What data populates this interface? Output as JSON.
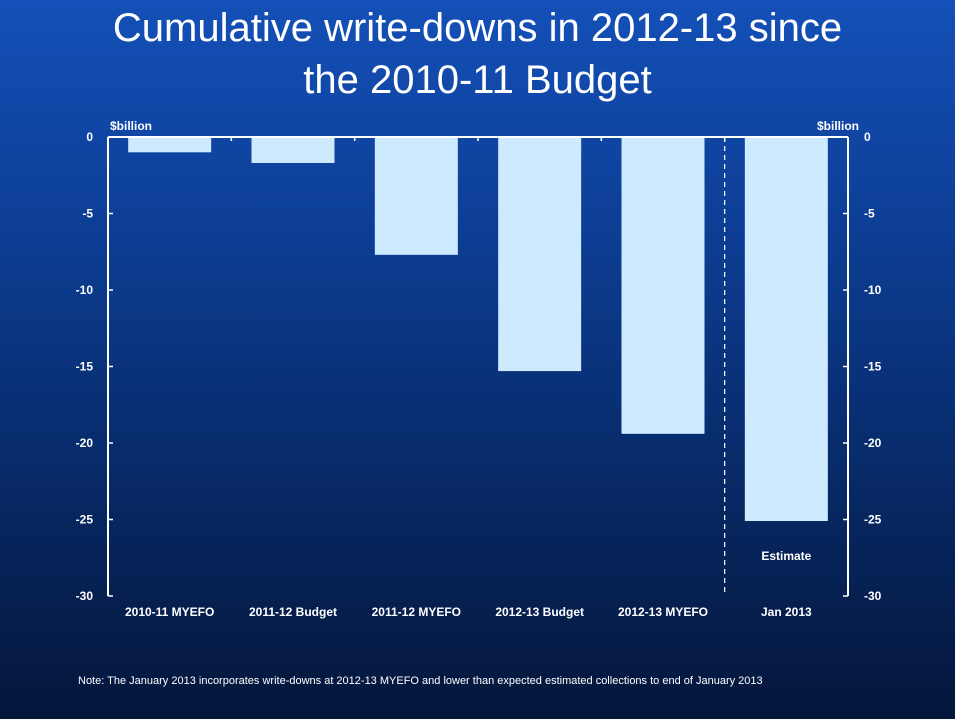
{
  "slide": {
    "title_line1": "Cumulative write-downs in 2012-13 since",
    "title_line2": "the 2010-11 Budget",
    "note": "Note: The January 2013 incorporates write-downs at 2012-13 MYEFO and lower than expected estimated collections to end of January 2013"
  },
  "colors": {
    "bar": "#cdeaff",
    "axis": "#ffffff",
    "divider": "#ffffff"
  },
  "chart_data": {
    "type": "bar",
    "categories": [
      "2010-11 MYEFO",
      "2011-12 Budget",
      "2011-12 MYEFO",
      "2012-13 Budget",
      "2012-13 MYEFO",
      "Jan 2013"
    ],
    "values": [
      -1.0,
      -1.7,
      -7.7,
      -15.3,
      -19.4,
      -25.1
    ],
    "ylabel_left": "$billion",
    "ylabel_right": "$billion",
    "ylim": [
      -30,
      0
    ],
    "yticks": [
      0,
      -5,
      -10,
      -15,
      -20,
      -25,
      -30
    ],
    "annotations": [
      {
        "text": "Estimate",
        "category": "Jan 2013"
      }
    ],
    "divider_between": [
      "2012-13 MYEFO",
      "Jan 2013"
    ],
    "grid": false,
    "legend": "none"
  }
}
